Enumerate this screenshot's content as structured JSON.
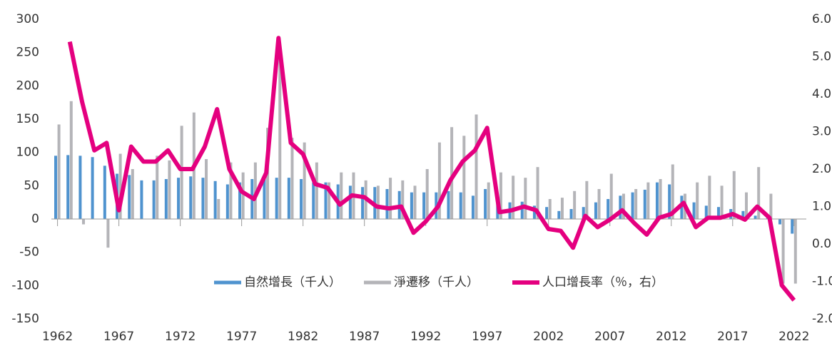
{
  "chart_data": {
    "type": "bar",
    "x": [
      1962,
      1963,
      1964,
      1965,
      1966,
      1967,
      1968,
      1969,
      1970,
      1971,
      1972,
      1973,
      1974,
      1975,
      1976,
      1977,
      1978,
      1979,
      1980,
      1981,
      1982,
      1983,
      1984,
      1985,
      1986,
      1987,
      1988,
      1989,
      1990,
      1991,
      1992,
      1993,
      1994,
      1995,
      1996,
      1997,
      1998,
      1999,
      2000,
      2001,
      2002,
      2003,
      2004,
      2005,
      2006,
      2007,
      2008,
      2009,
      2010,
      2011,
      2012,
      2013,
      2014,
      2015,
      2016,
      2017,
      2018,
      2019,
      2020,
      2021,
      2022
    ],
    "series": [
      {
        "name": "自然增長（千人）",
        "color": "#4f93cf",
        "type": "bar",
        "values": [
          95,
          96,
          95,
          93,
          80,
          68,
          66,
          58,
          58,
          60,
          62,
          64,
          62,
          57,
          52,
          55,
          60,
          60,
          62,
          62,
          60,
          55,
          55,
          52,
          50,
          48,
          48,
          45,
          42,
          40,
          40,
          40,
          42,
          40,
          35,
          45,
          28,
          25,
          26,
          20,
          18,
          12,
          15,
          18,
          25,
          30,
          35,
          40,
          44,
          55,
          52,
          35,
          25,
          20,
          18,
          15,
          12,
          5,
          2,
          -8,
          -22
        ]
      },
      {
        "name": "淨遷移（千人）",
        "color": "#b4b4b8",
        "type": "bar",
        "values": [
          142,
          177,
          -8,
          0,
          -43,
          98,
          75,
          0,
          95,
          88,
          140,
          160,
          90,
          30,
          85,
          70,
          85,
          137,
          252,
          122,
          115,
          85,
          55,
          70,
          70,
          58,
          50,
          62,
          58,
          50,
          75,
          115,
          138,
          125,
          157,
          55,
          70,
          65,
          62,
          78,
          30,
          32,
          42,
          57,
          45,
          68,
          38,
          45,
          55,
          60,
          82,
          38,
          55,
          65,
          50,
          72,
          40,
          78,
          38,
          -97,
          -97
        ]
      },
      {
        "name": "人口增長率（％，右）",
        "color": "#e4007f",
        "type": "line",
        "axis": "y2",
        "values": [
          null,
          5.4,
          3.8,
          2.5,
          2.7,
          0.9,
          2.6,
          2.2,
          2.2,
          2.5,
          2.0,
          2.0,
          2.6,
          3.6,
          2.0,
          1.4,
          1.2,
          1.9,
          5.5,
          2.7,
          2.4,
          1.6,
          1.5,
          1.05,
          1.3,
          1.25,
          1.0,
          0.95,
          1.0,
          0.3,
          0.6,
          1.0,
          1.7,
          2.2,
          2.5,
          3.1,
          0.85,
          0.9,
          1.0,
          0.9,
          0.4,
          0.35,
          -0.1,
          0.75,
          0.45,
          0.65,
          0.9,
          0.55,
          0.25,
          0.7,
          0.8,
          1.1,
          0.45,
          0.7,
          0.7,
          0.8,
          0.65,
          1.0,
          0.7,
          -1.1,
          -1.5
        ]
      }
    ],
    "xlim": [
      1961.5,
      2023
    ],
    "xticks": [
      1962,
      1967,
      1972,
      1977,
      1982,
      1987,
      1992,
      1997,
      2002,
      2007,
      2012,
      2017,
      2022
    ],
    "ylim": [
      -150,
      300
    ],
    "yticks": [
      -150,
      -100,
      -50,
      0,
      50,
      100,
      150,
      200,
      250,
      300
    ],
    "y2lim": [
      -2,
      6
    ],
    "y2ticks": [
      {
        "value": -2,
        "label": "-2.0"
      },
      {
        "value": -1,
        "label": "-1.0"
      },
      {
        "value": 0,
        "label": "0.0"
      },
      {
        "value": 1,
        "label": "1.0"
      },
      {
        "value": 2,
        "label": "2.0"
      },
      {
        "value": 3,
        "label": "3.0"
      },
      {
        "value": 4,
        "label": "4.0"
      },
      {
        "value": 5,
        "label": "5.0"
      },
      {
        "value": 6,
        "label": "6.0"
      }
    ],
    "grid": false,
    "legend": "bottom"
  }
}
